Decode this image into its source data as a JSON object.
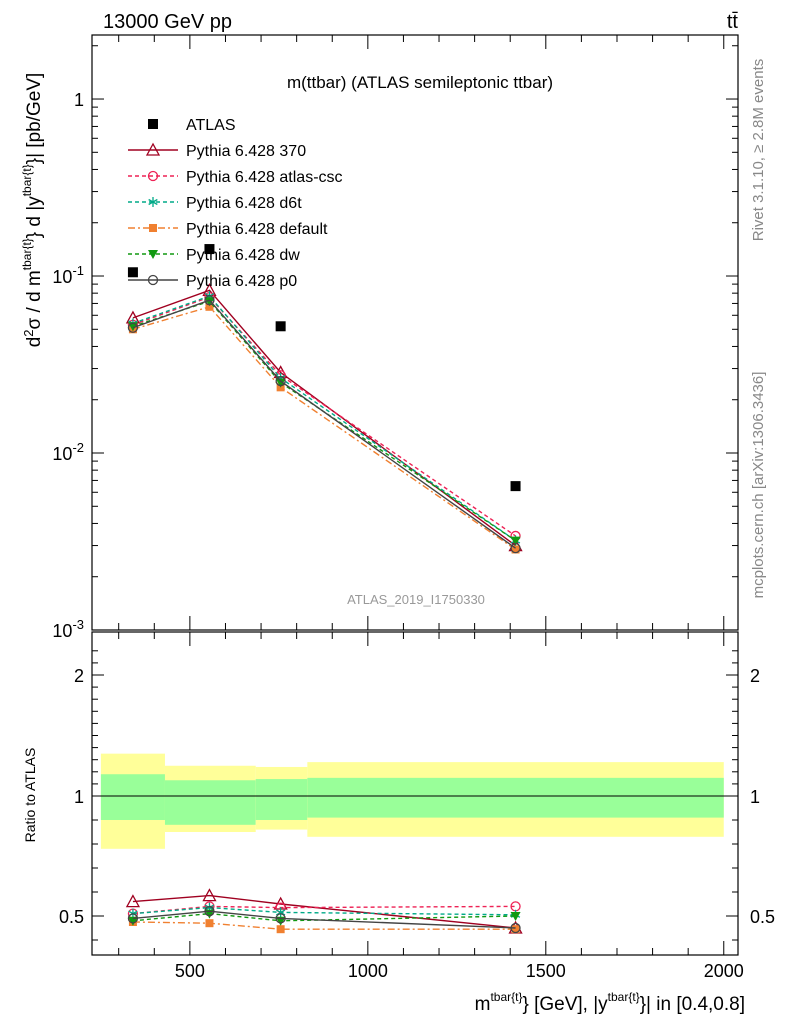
{
  "header": {
    "left": "13000 GeV pp",
    "right": "tt̄"
  },
  "side_right": {
    "top": "Rivet 3.1.10, ≥ 2.8M events",
    "bottom": "mcplots.cern.ch [arXiv:1306.3436]"
  },
  "chart_data": [
    {
      "type": "line",
      "title": "m(ttbar) (ATLAS semileptonic ttbar)",
      "watermark": "ATLAS_2019_I1750330",
      "yscale": "log",
      "ylim": [
        0.001,
        2.3
      ],
      "xlim": [
        225,
        2040
      ],
      "ylabel": "d²σ / d m^{tbar{t}} d |y^{tbar{t}}| [pb/GeV]",
      "ytick_labels": [
        {
          "v": 1,
          "text": "1"
        },
        {
          "v": 0.1,
          "text": "10^-1"
        },
        {
          "v": 0.01,
          "text": "10^-2"
        },
        {
          "v": 0.001,
          "text": "10^-3"
        }
      ],
      "legend_position": "top-left",
      "data": {
        "name": "ATLAS",
        "x": [
          340,
          555,
          755,
          1415
        ],
        "y": [
          0.105,
          0.142,
          0.052,
          0.0065
        ]
      },
      "series": [
        {
          "name": "Pythia 6.428 370",
          "color": "#a00020",
          "dash": "",
          "marker": "triangle-open",
          "x": [
            340,
            555,
            755,
            1415
          ],
          "y": [
            0.058,
            0.083,
            0.0285,
            0.003
          ]
        },
        {
          "name": "Pythia 6.428 atlas-csc",
          "color": "#ee2255",
          "dash": "4,3",
          "marker": "circle-open",
          "x": [
            340,
            555,
            755,
            1415
          ],
          "y": [
            0.053,
            0.076,
            0.0275,
            0.0034
          ]
        },
        {
          "name": "Pythia 6.428 d6t",
          "color": "#00aa88",
          "dash": "4,3",
          "marker": "asterisk",
          "x": [
            340,
            555,
            755,
            1415
          ],
          "y": [
            0.054,
            0.077,
            0.0265,
            0.0032
          ]
        },
        {
          "name": "Pythia 6.428 default",
          "color": "#f08030",
          "dash": "7,3,2,3",
          "marker": "square",
          "x": [
            340,
            555,
            755,
            1415
          ],
          "y": [
            0.05,
            0.067,
            0.0235,
            0.00285
          ]
        },
        {
          "name": "Pythia 6.428 dw",
          "color": "#119911",
          "dash": "4,3",
          "marker": "triangle-down",
          "x": [
            340,
            555,
            755,
            1415
          ],
          "y": [
            0.052,
            0.072,
            0.025,
            0.0032
          ]
        },
        {
          "name": "Pythia 6.428 p0",
          "color": "#444444",
          "dash": "",
          "marker": "circle-open",
          "x": [
            340,
            555,
            755,
            1415
          ],
          "y": [
            0.051,
            0.073,
            0.0255,
            0.0029
          ]
        }
      ]
    },
    {
      "type": "line",
      "ylabel": "Ratio to ATLAS",
      "xlabel": "m^{tbar{t}} [GeV], |y^{tbar{t}}| in [0.4,0.8]",
      "xlim": [
        225,
        2040
      ],
      "ylim": [
        0.35,
        2.3
      ],
      "xtick_labels": [
        500,
        1000,
        1500,
        2000
      ],
      "ytick_labels": [
        0.5,
        1,
        2
      ],
      "bands": [
        {
          "x0": 250,
          "x1": 430,
          "inner": [
            0.9,
            1.18
          ],
          "outer": [
            0.78,
            1.35
          ]
        },
        {
          "x0": 430,
          "x1": 685,
          "inner": [
            0.88,
            1.13
          ],
          "outer": [
            0.85,
            1.25
          ]
        },
        {
          "x0": 685,
          "x1": 830,
          "inner": [
            0.9,
            1.14
          ],
          "outer": [
            0.86,
            1.24
          ]
        },
        {
          "x0": 830,
          "x1": 2000,
          "inner": [
            0.91,
            1.15
          ],
          "outer": [
            0.83,
            1.28
          ]
        }
      ],
      "series": [
        {
          "name": "Pythia 6.428 370",
          "x": [
            340,
            555,
            755,
            1415
          ],
          "y": [
            0.56,
            0.585,
            0.55,
            0.45
          ]
        },
        {
          "name": "Pythia 6.428 atlas-csc",
          "x": [
            340,
            555,
            755,
            1415
          ],
          "y": [
            0.51,
            0.54,
            0.535,
            0.54
          ]
        },
        {
          "name": "Pythia 6.428 d6t",
          "x": [
            340,
            555,
            755,
            1415
          ],
          "y": [
            0.51,
            0.535,
            0.515,
            0.505
          ]
        },
        {
          "name": "Pythia 6.428 default",
          "x": [
            340,
            555,
            755,
            1415
          ],
          "y": [
            0.475,
            0.47,
            0.445,
            0.445
          ]
        },
        {
          "name": "Pythia 6.428 dw",
          "x": [
            340,
            555,
            755,
            1415
          ],
          "y": [
            0.48,
            0.51,
            0.48,
            0.5
          ]
        },
        {
          "name": "Pythia 6.428 p0",
          "x": [
            340,
            555,
            755,
            1415
          ],
          "y": [
            0.49,
            0.52,
            0.49,
            0.45
          ]
        }
      ]
    }
  ]
}
